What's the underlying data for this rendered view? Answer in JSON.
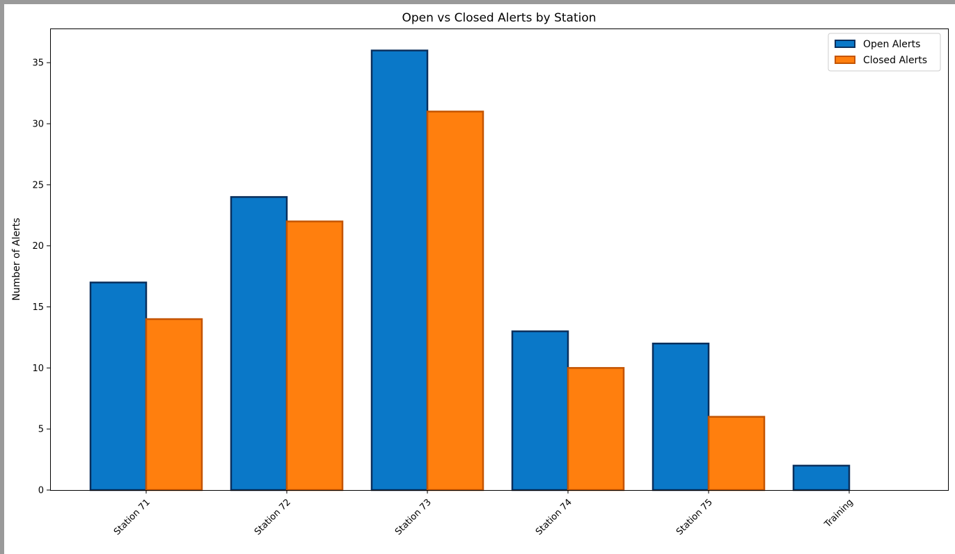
{
  "chart_data": {
    "type": "bar",
    "title": "Open vs Closed Alerts by Station",
    "xlabel": "",
    "ylabel": "Number of Alerts",
    "categories": [
      "Station 71",
      "Station 72",
      "Station 73",
      "Station 74",
      "Station 75",
      "Training"
    ],
    "series": [
      {
        "name": "Open Alerts",
        "values": [
          17,
          24,
          36,
          13,
          12,
          2
        ],
        "color": "#0a78c8",
        "edge_color": "#0a2f5c"
      },
      {
        "name": "Closed Alerts",
        "values": [
          14,
          22,
          31,
          10,
          6,
          0
        ],
        "color": "#ff7f0e",
        "edge_color": "#c45400"
      }
    ],
    "ylim": [
      0,
      37.8
    ],
    "yticks": [
      0,
      5,
      10,
      15,
      20,
      25,
      30,
      35
    ],
    "grid": false,
    "legend_position": "top-right",
    "xtick_rotation": 45
  }
}
